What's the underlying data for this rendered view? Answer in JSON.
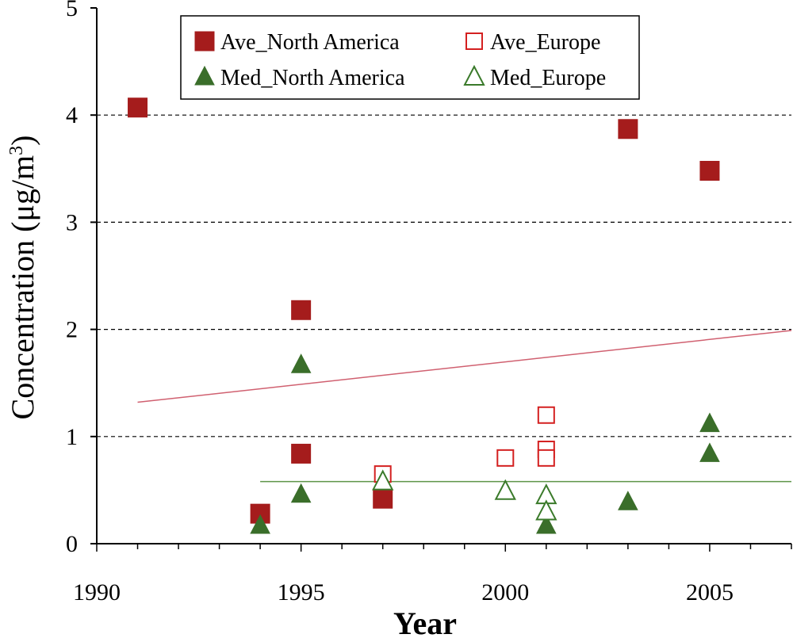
{
  "chart_data": {
    "type": "scatter",
    "title": "",
    "xlabel": "Year",
    "ylabel": "Concentration (μg/m³)",
    "ylabel_parts": {
      "main": "Concentration (μg/m",
      "sup": "3",
      "close": ")"
    },
    "xlim": [
      1990,
      2007
    ],
    "ylim": [
      0,
      5
    ],
    "x_ticks": [
      1990,
      1995,
      2000,
      2005
    ],
    "y_ticks": [
      0,
      1,
      2,
      3,
      4,
      5
    ],
    "grid": {
      "y": [
        1,
        2,
        3,
        4
      ],
      "style": "dashed"
    },
    "legend_position": "top-center",
    "series": [
      {
        "name": "Ave_North America",
        "marker": "square",
        "filled": true,
        "color": "#a51c1c",
        "points": [
          [
            1991,
            4.07
          ],
          [
            1994,
            0.28
          ],
          [
            1995,
            2.18
          ],
          [
            1995,
            0.84
          ],
          [
            1997,
            0.42
          ],
          [
            2003,
            3.87
          ],
          [
            2005,
            3.48
          ]
        ]
      },
      {
        "name": "Ave_Europe",
        "marker": "square",
        "filled": false,
        "color": "#d42020",
        "points": [
          [
            1997,
            0.65
          ],
          [
            2000,
            0.8
          ],
          [
            2001,
            1.2
          ],
          [
            2001,
            0.88
          ],
          [
            2001,
            0.8
          ]
        ]
      },
      {
        "name": "Med_North America",
        "marker": "triangle",
        "filled": true,
        "color": "#3a6e2a",
        "points": [
          [
            1994,
            0.17
          ],
          [
            1995,
            1.67
          ],
          [
            1995,
            0.46
          ],
          [
            2001,
            0.17
          ],
          [
            2003,
            0.39
          ],
          [
            2005,
            1.12
          ],
          [
            2005,
            0.84
          ]
        ]
      },
      {
        "name": "Med_Europe",
        "marker": "triangle",
        "filled": false,
        "color": "#3a7a2a",
        "points": [
          [
            1997,
            0.58
          ],
          [
            2000,
            0.49
          ],
          [
            2001,
            0.45
          ],
          [
            2001,
            0.3
          ]
        ]
      }
    ],
    "trendlines": [
      {
        "name": "trend-ave",
        "color": "#d06070",
        "x": [
          1991,
          2007
        ],
        "y": [
          1.32,
          1.99
        ]
      },
      {
        "name": "trend-med",
        "color": "#5e9448",
        "x": [
          1994,
          2007
        ],
        "y": [
          0.58,
          0.58
        ]
      }
    ]
  }
}
